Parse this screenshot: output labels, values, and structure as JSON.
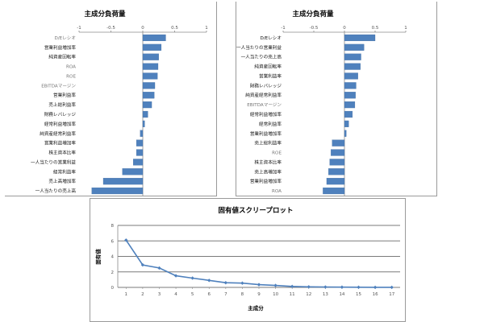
{
  "chart_data": [
    {
      "type": "bar",
      "orientation": "horizontal",
      "title": "主成分負荷量",
      "xlim": [
        -1,
        1
      ],
      "xticks": [
        "-1",
        "-0.5",
        "0",
        "0.5",
        "1"
      ],
      "categories": [
        {
          "label": "D/Eレシオ",
          "value": 0.36,
          "muted": true
        },
        {
          "label": "営業利益増加率",
          "value": 0.29,
          "muted": false
        },
        {
          "label": "純資産回転率",
          "value": 0.25,
          "muted": false
        },
        {
          "label": "ROA",
          "value": 0.24,
          "muted": true
        },
        {
          "label": "ROE",
          "value": 0.23,
          "muted": true
        },
        {
          "label": "EBITDAマージン",
          "value": 0.19,
          "muted": true
        },
        {
          "label": "営業利益率",
          "value": 0.18,
          "muted": false
        },
        {
          "label": "売上総利益率",
          "value": 0.14,
          "muted": false
        },
        {
          "label": "財務レバレッジ",
          "value": 0.08,
          "muted": false
        },
        {
          "label": "経常利益増加率",
          "value": 0.03,
          "muted": false
        },
        {
          "label": "純資産経常利益率",
          "value": -0.04,
          "muted": false
        },
        {
          "label": "営業利益増加率",
          "value": -0.1,
          "muted": false
        },
        {
          "label": "株主資本比率",
          "value": -0.1,
          "muted": false
        },
        {
          "label": "一人当たりの営業利益",
          "value": -0.15,
          "muted": false
        },
        {
          "label": "経常利益率",
          "value": -0.32,
          "muted": false
        },
        {
          "label": "売上高増加率",
          "value": -0.62,
          "muted": false
        },
        {
          "label": "一人当たりの売上高",
          "value": -0.8,
          "muted": false
        }
      ]
    },
    {
      "type": "bar",
      "orientation": "horizontal",
      "title": "主成分負荷量",
      "xlim": [
        -1,
        1
      ],
      "xticks": [
        "-1",
        "-0.5",
        "0",
        "0.5",
        "1"
      ],
      "categories": [
        {
          "label": "D/Eレシオ",
          "value": 0.5,
          "muted": false
        },
        {
          "label": "一人当たりの営業利益",
          "value": 0.32,
          "muted": false
        },
        {
          "label": "一人当たりの売上高",
          "value": 0.27,
          "muted": false
        },
        {
          "label": "純資産回転率",
          "value": 0.26,
          "muted": false
        },
        {
          "label": "営業利益率",
          "value": 0.22,
          "muted": false
        },
        {
          "label": "財務レバレッジ",
          "value": 0.19,
          "muted": false
        },
        {
          "label": "純資産経常利益率",
          "value": 0.18,
          "muted": false
        },
        {
          "label": "EBITDAマージン",
          "value": 0.17,
          "muted": true
        },
        {
          "label": "経常利益増加率",
          "value": 0.13,
          "muted": false
        },
        {
          "label": "経常利益率",
          "value": 0.07,
          "muted": false
        },
        {
          "label": "営業利益増加率",
          "value": 0.03,
          "muted": false
        },
        {
          "label": "売上総利益率",
          "value": -0.2,
          "muted": false
        },
        {
          "label": "ROE",
          "value": -0.22,
          "muted": true
        },
        {
          "label": "株主資本比率",
          "value": -0.24,
          "muted": false
        },
        {
          "label": "売上高増加率",
          "value": -0.26,
          "muted": false
        },
        {
          "label": "営業利益増加率",
          "value": -0.29,
          "muted": false
        },
        {
          "label": "ROA",
          "value": -0.35,
          "muted": true
        }
      ]
    },
    {
      "type": "line",
      "title": "固有値スクリープロット",
      "xlabel": "主成分",
      "ylabel": "固有値",
      "ylim": [
        0,
        8
      ],
      "yticks": [
        0,
        2,
        4,
        6,
        8
      ],
      "x": [
        1,
        2,
        3,
        4,
        5,
        6,
        7,
        8,
        9,
        10,
        11,
        12,
        13,
        14,
        15,
        16,
        17
      ],
      "values": [
        6.1,
        2.9,
        2.5,
        1.5,
        1.2,
        0.9,
        0.6,
        0.55,
        0.35,
        0.25,
        0.12,
        0.07,
        0.05,
        0.03,
        0.02,
        0.01,
        0.01
      ]
    }
  ],
  "colors": {
    "bar": "#4f81bd",
    "bar_edge": "#3f6a9e",
    "line": "#4f81bd",
    "grid": "#7a7a7a",
    "muted_text": "#777777"
  }
}
